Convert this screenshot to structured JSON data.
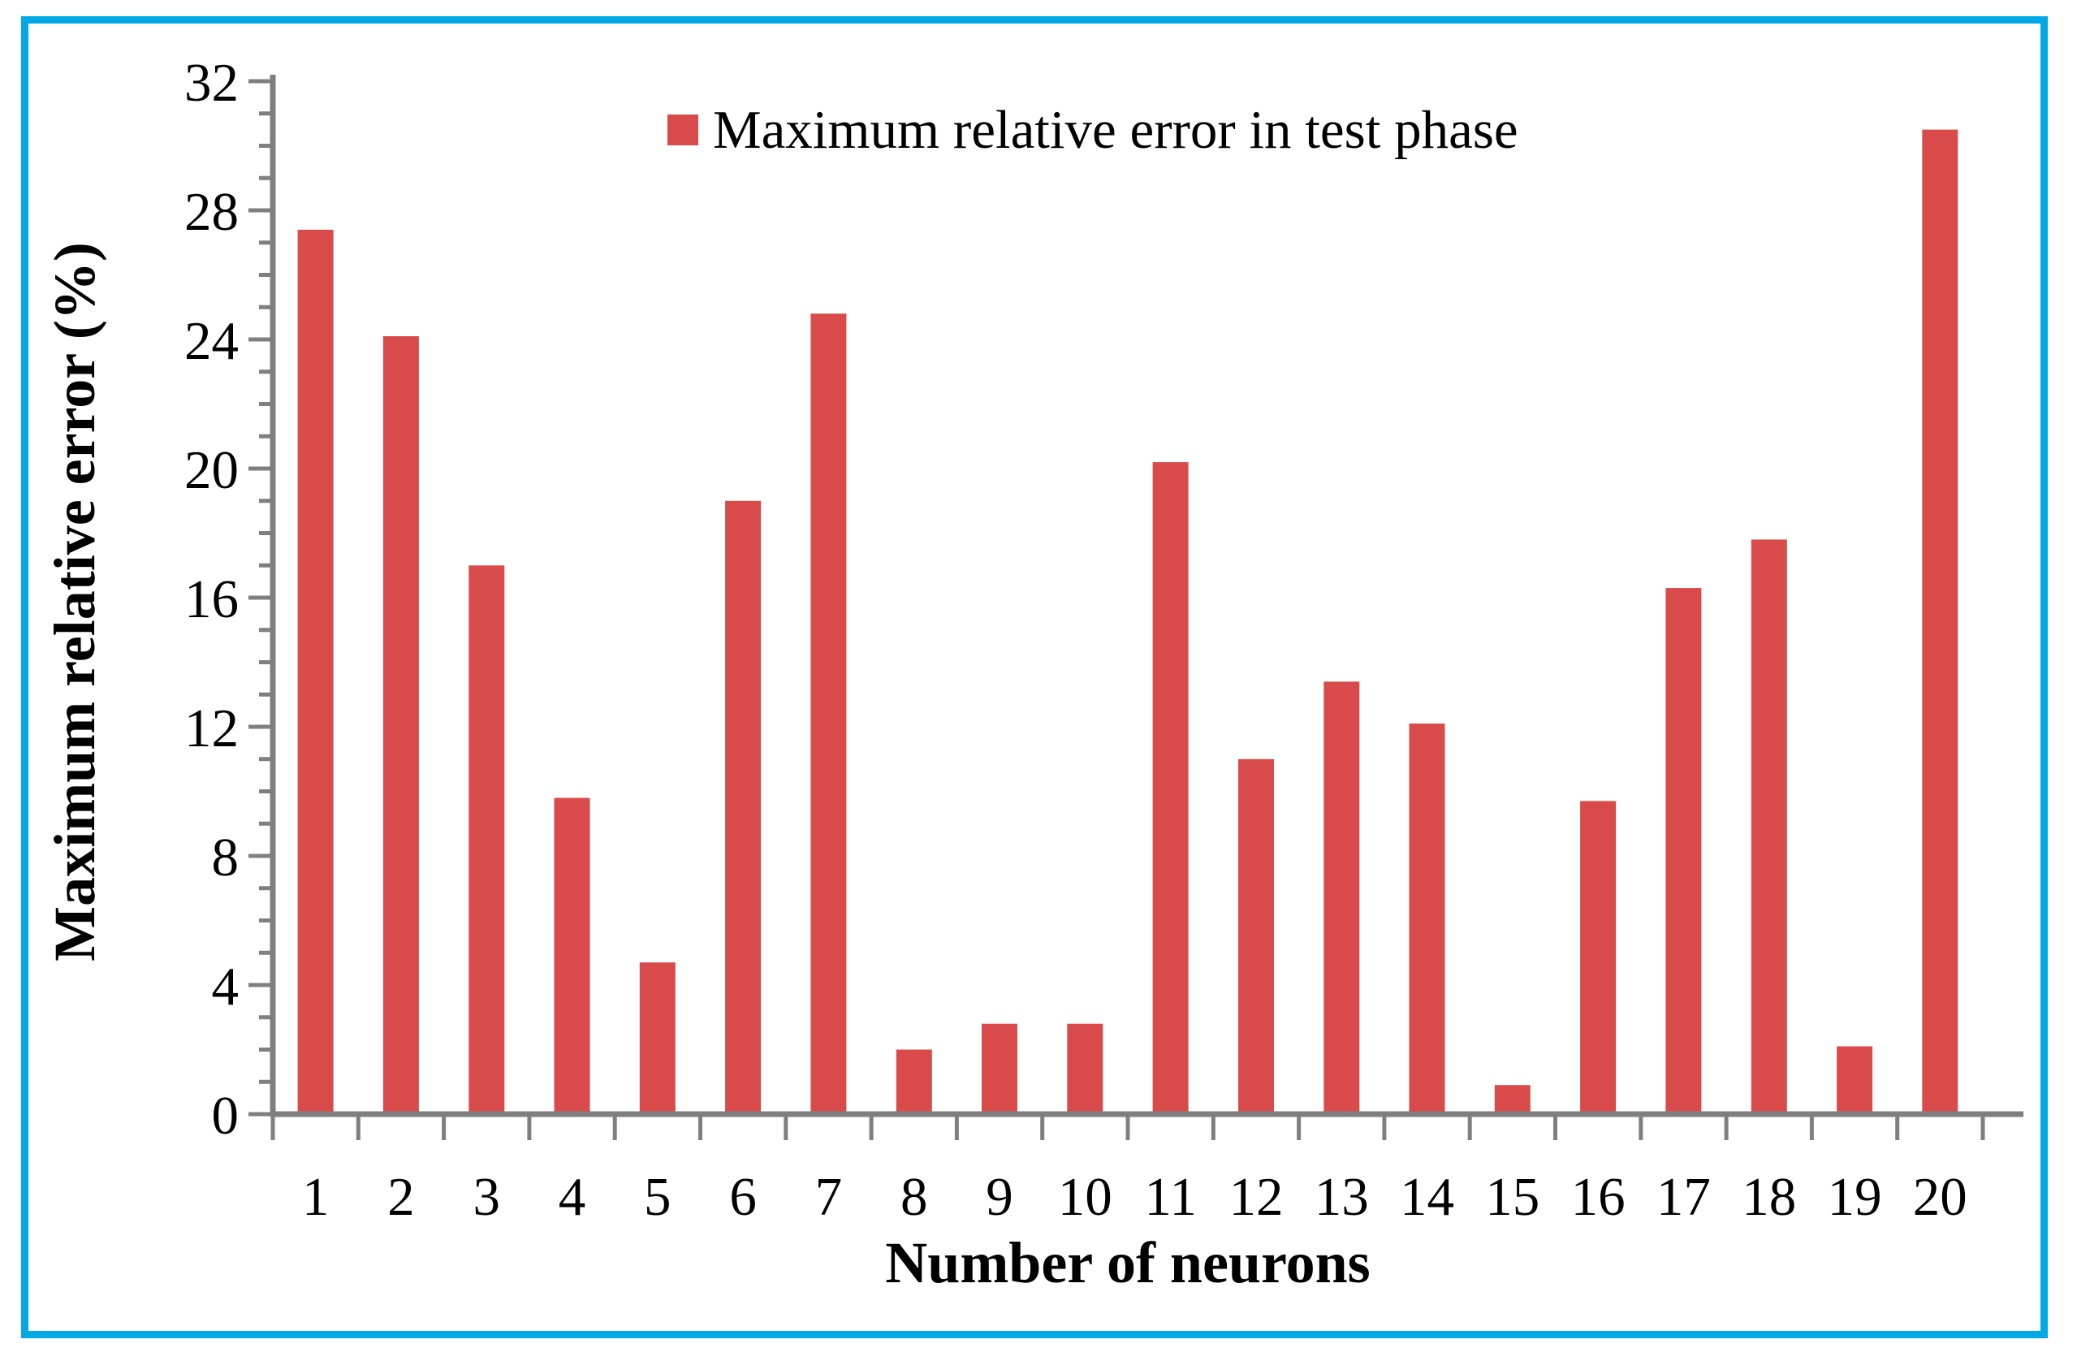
{
  "figure": {
    "border_color": "#00A9E4",
    "background_color": "#FFFFFF"
  },
  "chart_data": {
    "type": "bar",
    "title": "",
    "xlabel": "Number of neurons",
    "ylabel": "Maximum relative error (%)",
    "categories": [
      "1",
      "2",
      "3",
      "4",
      "5",
      "6",
      "7",
      "8",
      "9",
      "10",
      "11",
      "12",
      "13",
      "14",
      "15",
      "16",
      "17",
      "18",
      "19",
      "20"
    ],
    "series": [
      {
        "name": "Maximum relative error in test phase",
        "values": [
          27.4,
          24.1,
          17.0,
          9.8,
          4.7,
          19.0,
          24.8,
          2.0,
          2.8,
          2.8,
          20.2,
          11.0,
          13.4,
          12.1,
          0.9,
          9.7,
          16.3,
          17.8,
          2.1,
          30.5
        ],
        "color": "#D94B4B"
      }
    ],
    "ylim": [
      0,
      32
    ],
    "y_major_step": 4,
    "y_minor_step": 1,
    "y_tick_labels": [
      "0",
      "4",
      "8",
      "12",
      "16",
      "20",
      "24",
      "28",
      "32"
    ],
    "grid": false,
    "legend_position": "top-center",
    "axis_color": "#7F7F7F",
    "text_color": "#000000"
  }
}
